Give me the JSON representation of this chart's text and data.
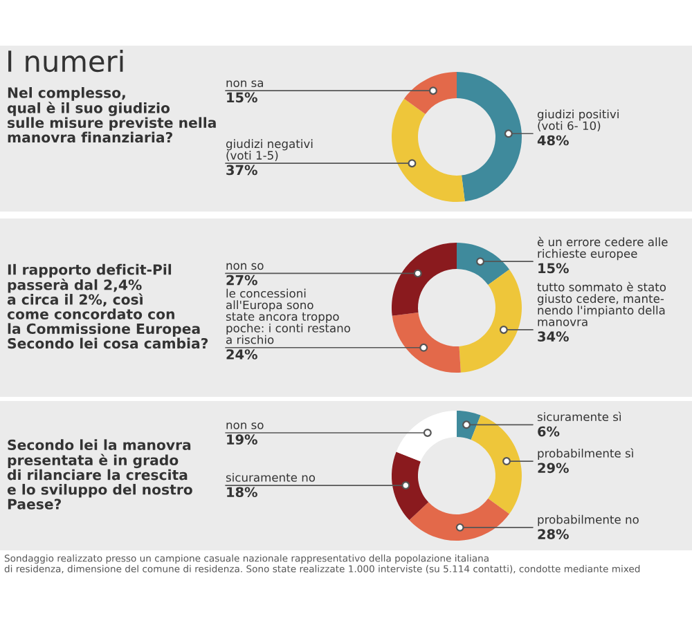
{
  "chart_data": [
    {
      "type": "donut",
      "title": "I numeri",
      "subtitle": "Nel complesso,\nqual è il suo giudizio\nsulle misure previste nella\nmanovra finanziaria?",
      "categories": [
        "giudizi positivi\n(voti 6- 10)",
        "giudizi negativi\n(voti 1-5)",
        "non sa"
      ],
      "values": [
        48,
        37,
        15
      ],
      "value_labels": [
        "48%",
        "37%",
        "15%"
      ],
      "colors": [
        "#3f8a9c",
        "#eec63a",
        "#e3694a"
      ]
    },
    {
      "type": "donut",
      "subtitle": "Il rapporto deficit-Pil\npasserà dal 2,4%\na circa il 2%, così\ncome concordato con\nla Commissione Europea\nSecondo lei cosa cambia?",
      "categories": [
        "è un errore cedere alle\nrichieste europee",
        "tutto sommato è stato\ngiusto cedere, mante-\nnendo l'impianto della\nmanovra",
        "le concessioni\nall'Europa sono\nstate ancora troppo\npoche: i conti restano\na rischio",
        "non so"
      ],
      "values": [
        15,
        34,
        24,
        27
      ],
      "value_labels": [
        "15%",
        "34%",
        "24%",
        "27%"
      ],
      "colors": [
        "#3f8a9c",
        "#eec63a",
        "#e3694a",
        "#8a1a1e"
      ]
    },
    {
      "type": "donut",
      "subtitle": "Secondo lei la manovra\npresentata è in grado\ndi rilanciare la crescita\ne lo sviluppo del nostro\nPaese?",
      "categories": [
        "sicuramente sì",
        "probabilmente sì",
        "probabilmente no",
        "sicuramente no",
        "non so"
      ],
      "values": [
        6,
        29,
        28,
        18,
        19
      ],
      "value_labels": [
        "6%",
        "29%",
        "28%",
        "18%",
        "19%"
      ],
      "colors": [
        "#3f8a9c",
        "#eec63a",
        "#e3694a",
        "#8a1a1e",
        "#ffffff"
      ],
      "annotations": [
        "Sondaggio realizzato presso un campione casuale nazionale rappresentativo della popolazione italiana\ndi residenza, dimensione del comune di residenza. Sono state realizzate 1.000 interviste (su 5.114 contatti), condotte mediante mixed"
      ]
    }
  ]
}
